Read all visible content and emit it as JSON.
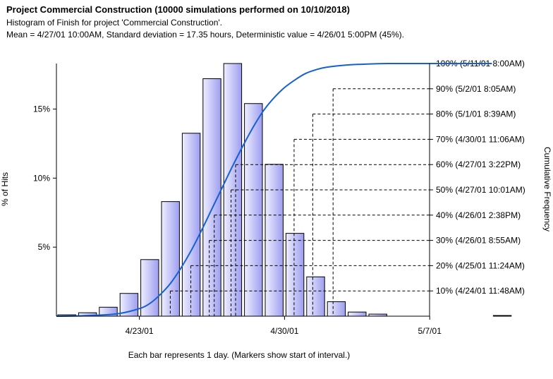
{
  "title": "Project Commercial Construction (10000 simulations performed on 10/10/2018)",
  "subtitle": "Histogram of Finish for project 'Commercial Construction'.",
  "stats_line": "Mean = 4/27/01 10:00AM, Standard deviation = 17.35 hours, Deterministic value = 4/26/01 5:00PM (45%).",
  "chart_data": {
    "type": "bar",
    "x_axis": {
      "title": "Each bar represents 1 day. (Markers show start of interval.)",
      "tick_labels": [
        "4/23/01",
        "4/30/01",
        "5/7/01"
      ],
      "tick_days": [
        3,
        10,
        17
      ]
    },
    "y_axis": {
      "title": "% of Hits",
      "tick_labels": [
        "5%",
        "10%",
        "15%"
      ],
      "tick_values": [
        5,
        10,
        15
      ],
      "ylim": [
        0,
        18.3
      ]
    },
    "y2_axis": {
      "title": "Cumulative Frequency",
      "ylim": [
        0,
        100
      ]
    },
    "bars_day_start": [
      -1,
      0,
      1,
      2,
      3,
      4,
      5,
      6,
      7,
      8,
      9,
      10,
      11,
      12,
      13,
      14,
      15,
      16,
      17,
      18,
      20
    ],
    "bars_percent": [
      0.1,
      0.25,
      0.65,
      1.65,
      4.1,
      8.3,
      13.25,
      17.2,
      18.3,
      15.4,
      11.0,
      6.0,
      2.85,
      1.05,
      0.3,
      0.15,
      0.0,
      0.0,
      0.0,
      0.0,
      0.05
    ],
    "cumulative_curve": {
      "day": [
        -1,
        0,
        1,
        2,
        3,
        3.5,
        4,
        4.5,
        5,
        5.5,
        6,
        6.5,
        7,
        7.5,
        8,
        8.5,
        9,
        9.5,
        10,
        10.5,
        11,
        11.5,
        12,
        13,
        14,
        15,
        16,
        18,
        20
      ],
      "percent": [
        0,
        0.1,
        0.4,
        1,
        3,
        5,
        8.5,
        13,
        19,
        26,
        34,
        42.5,
        51,
        59.5,
        67.5,
        75,
        81.5,
        86.5,
        90.5,
        93.5,
        96,
        97.5,
        98.5,
        99.4,
        99.8,
        100,
        100,
        100,
        100
      ]
    },
    "percentile_markers": [
      {
        "label": "10% (4/24/01 11:48AM)",
        "percent": 10,
        "day": 4.49
      },
      {
        "label": "20% (4/25/01 11:24AM)",
        "percent": 20,
        "day": 5.48
      },
      {
        "label": "30% (4/26/01 8:55AM)",
        "percent": 30,
        "day": 6.37
      },
      {
        "label": "40% (4/26/01 2:38PM)",
        "percent": 40,
        "day": 6.61
      },
      {
        "label": "50% (4/27/01 10:01AM)",
        "percent": 50,
        "day": 7.42
      },
      {
        "label": "60% (4/27/01 3:22PM)",
        "percent": 60,
        "day": 7.64
      },
      {
        "label": "70% (4/30/01 11:06AM)",
        "percent": 70,
        "day": 10.46
      },
      {
        "label": "80% (5/1/01 8:39AM)",
        "percent": 80,
        "day": 11.36
      },
      {
        "label": "90% (5/2/01 8:05AM)",
        "percent": 90,
        "day": 12.34
      },
      {
        "label": "100% (5/11/01 8:00AM)",
        "percent": 100,
        "day": 21.33
      }
    ],
    "colors": {
      "bar_fill_light": "#eeeeff",
      "bar_fill_dark": "#9e9ef0",
      "bar_stroke": "#000000",
      "curve": "#1560d4",
      "marker_line": "#000000"
    },
    "grid": false
  }
}
